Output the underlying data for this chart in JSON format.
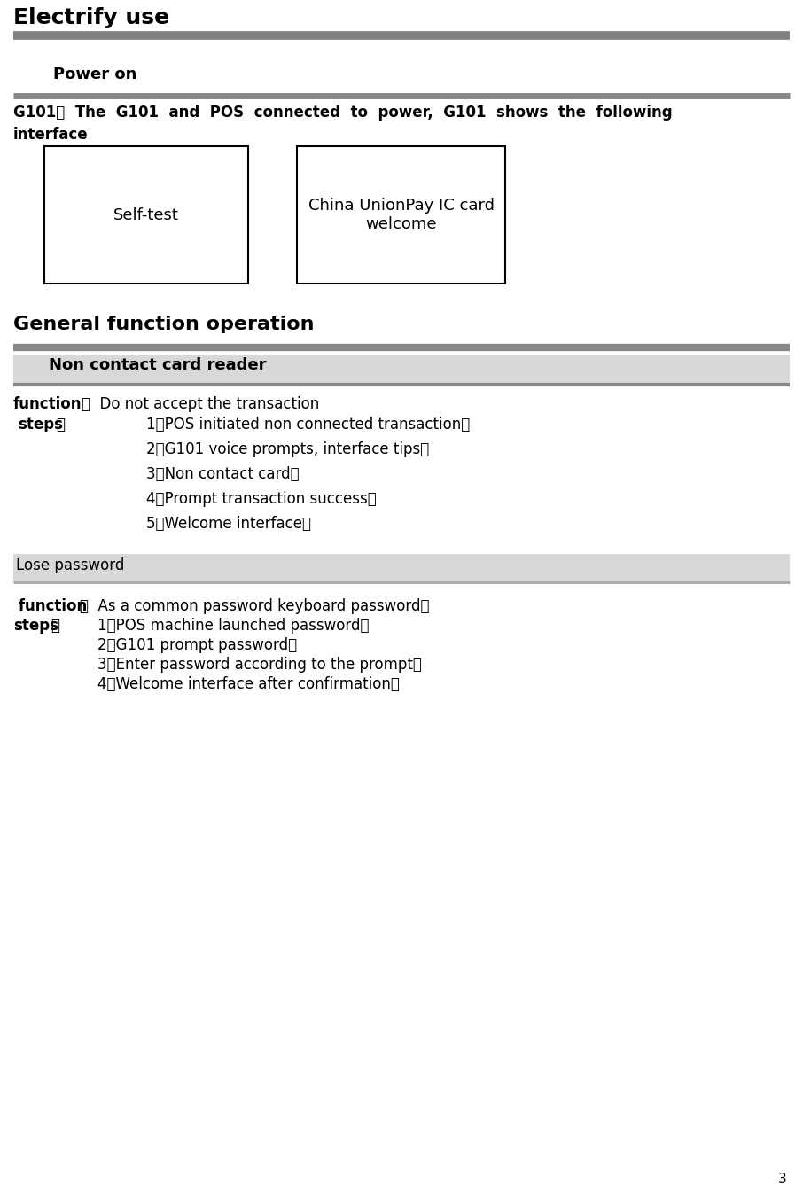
{
  "title": "Electrify use",
  "background_color": "#ffffff",
  "page_number": "3",
  "section1_heading": "Power on",
  "box1_text": "Self-test",
  "box2_text": "China UnionPay IC card\nwelcome",
  "section2_heading": "General function operation",
  "subsection2a_heading": "Non contact card reader",
  "function1_text": "Do not accept the transaction",
  "steps1": [
    "1、POS initiated non connected transaction；",
    "2、G101 voice prompts, interface tips；",
    "3、Non contact card；",
    "4、Prompt transaction success；",
    "5、Welcome interface。"
  ],
  "subsection2b_heading": "Lose password",
  "function2_text": "As a common password keyboard password。",
  "steps2": [
    "1、POS machine launched password；",
    "2、G101 prompt password；",
    "3、Enter password according to the prompt；",
    "4、Welcome interface after confirmation；"
  ]
}
